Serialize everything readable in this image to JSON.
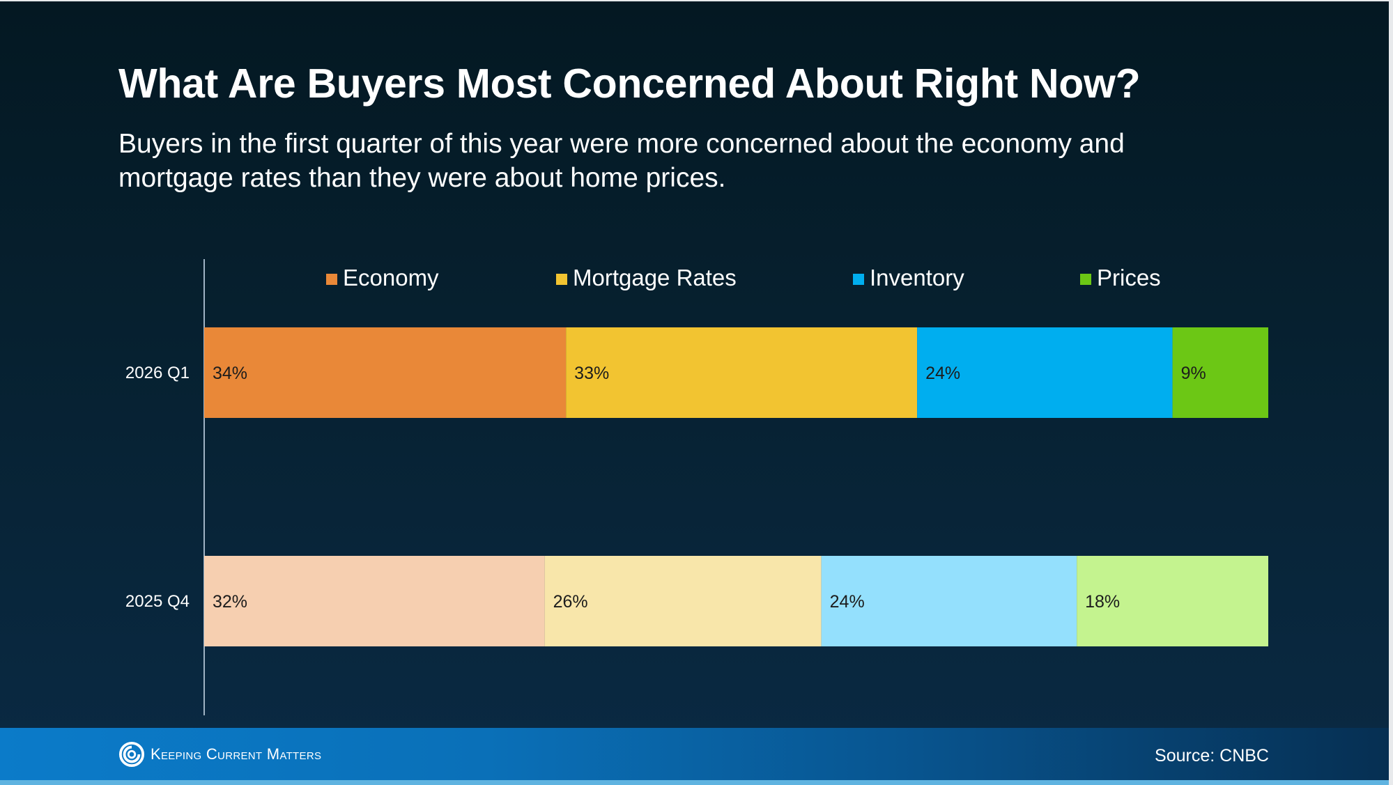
{
  "slide": {
    "title": "What Are Buyers Most Concerned About Right Now?",
    "subtitle": "Buyers in the first quarter of this year were more concerned about the economy and mortgage rates than they were about home prices.",
    "footer": {
      "logo_text": "Keeping Current Matters",
      "logo_icon": "swirl-logo-icon",
      "source": "Source: CNBC"
    }
  },
  "chart_data": {
    "type": "bar",
    "orientation": "horizontal",
    "stacked": true,
    "title": "What Are Buyers Most Concerned About Right Now?",
    "xlabel": "",
    "ylabel": "",
    "xlim": [
      0,
      100
    ],
    "grid": false,
    "legend_position": "top",
    "categories": [
      "2026 Q1",
      "2025 Q4"
    ],
    "series": [
      {
        "name": "Economy",
        "values": [
          34,
          32
        ],
        "labels": [
          "34%",
          "32%"
        ],
        "colors": [
          "#e98838",
          "#f6cfb0"
        ]
      },
      {
        "name": "Mortgage Rates",
        "values": [
          33,
          26
        ],
        "labels": [
          "33%",
          "26%"
        ],
        "colors": [
          "#f2c431",
          "#f8e6aa"
        ]
      },
      {
        "name": "Inventory",
        "values": [
          24,
          24
        ],
        "labels": [
          "24%",
          "24%"
        ],
        "colors": [
          "#00aeef",
          "#94e0fd"
        ]
      },
      {
        "name": "Prices",
        "values": [
          9,
          18
        ],
        "labels": [
          "9%",
          "18%"
        ],
        "colors": [
          "#6cc715",
          "#c4f38f"
        ]
      }
    ],
    "legend_colors": [
      "#e98838",
      "#f2c431",
      "#00aeef",
      "#6cc715"
    ]
  }
}
